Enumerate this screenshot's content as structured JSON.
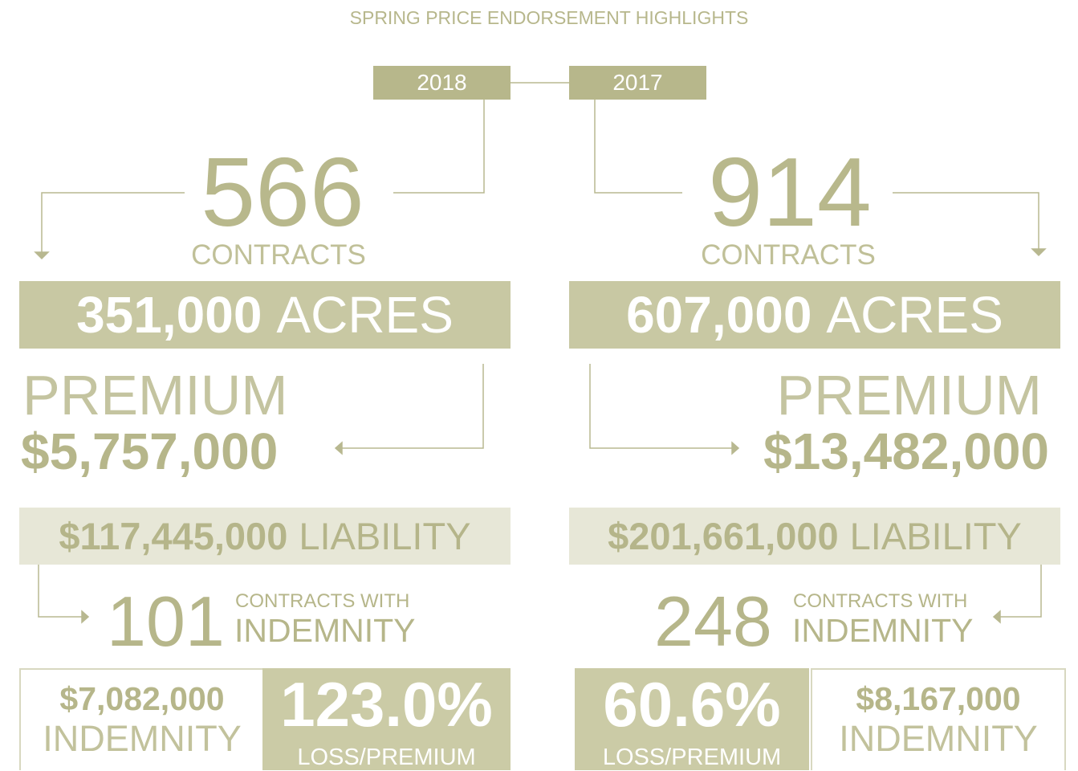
{
  "title": "SPRING PRICE ENDORSEMENT HIGHLIGHTS",
  "columns": [
    {
      "year": "2018",
      "contracts": "566",
      "contracts_label": "CONTRACTS",
      "acres": "351,000",
      "acres_label": "ACRES",
      "premium_label": "PREMIUM",
      "premium": "$5,757,000",
      "liability": "$117,445,000",
      "liability_label": "LIABILITY",
      "indemnity_contracts": "101",
      "indemnity_contracts_label_top": "CONTRACTS WITH",
      "indemnity_contracts_label": "INDEMNITY",
      "indemnity": "$7,082,000",
      "indemnity_label": "INDEMNITY",
      "loss_ratio": "123.0%",
      "loss_ratio_label": "LOSS/PREMIUM"
    },
    {
      "year": "2017",
      "contracts": "914",
      "contracts_label": "CONTRACTS",
      "acres": "607,000",
      "acres_label": "ACRES",
      "premium_label": "PREMIUM",
      "premium": "$13,482,000",
      "liability": "$201,661,000",
      "liability_label": "LIABILITY",
      "indemnity_contracts": "248",
      "indemnity_contracts_label_top": "CONTRACTS WITH",
      "indemnity_contracts_label": "INDEMNITY",
      "indemnity": "$8,167,000",
      "indemnity_label": "INDEMNITY",
      "loss_ratio": "60.6%",
      "loss_ratio_label": "LOSS/PREMIUM"
    }
  ]
}
